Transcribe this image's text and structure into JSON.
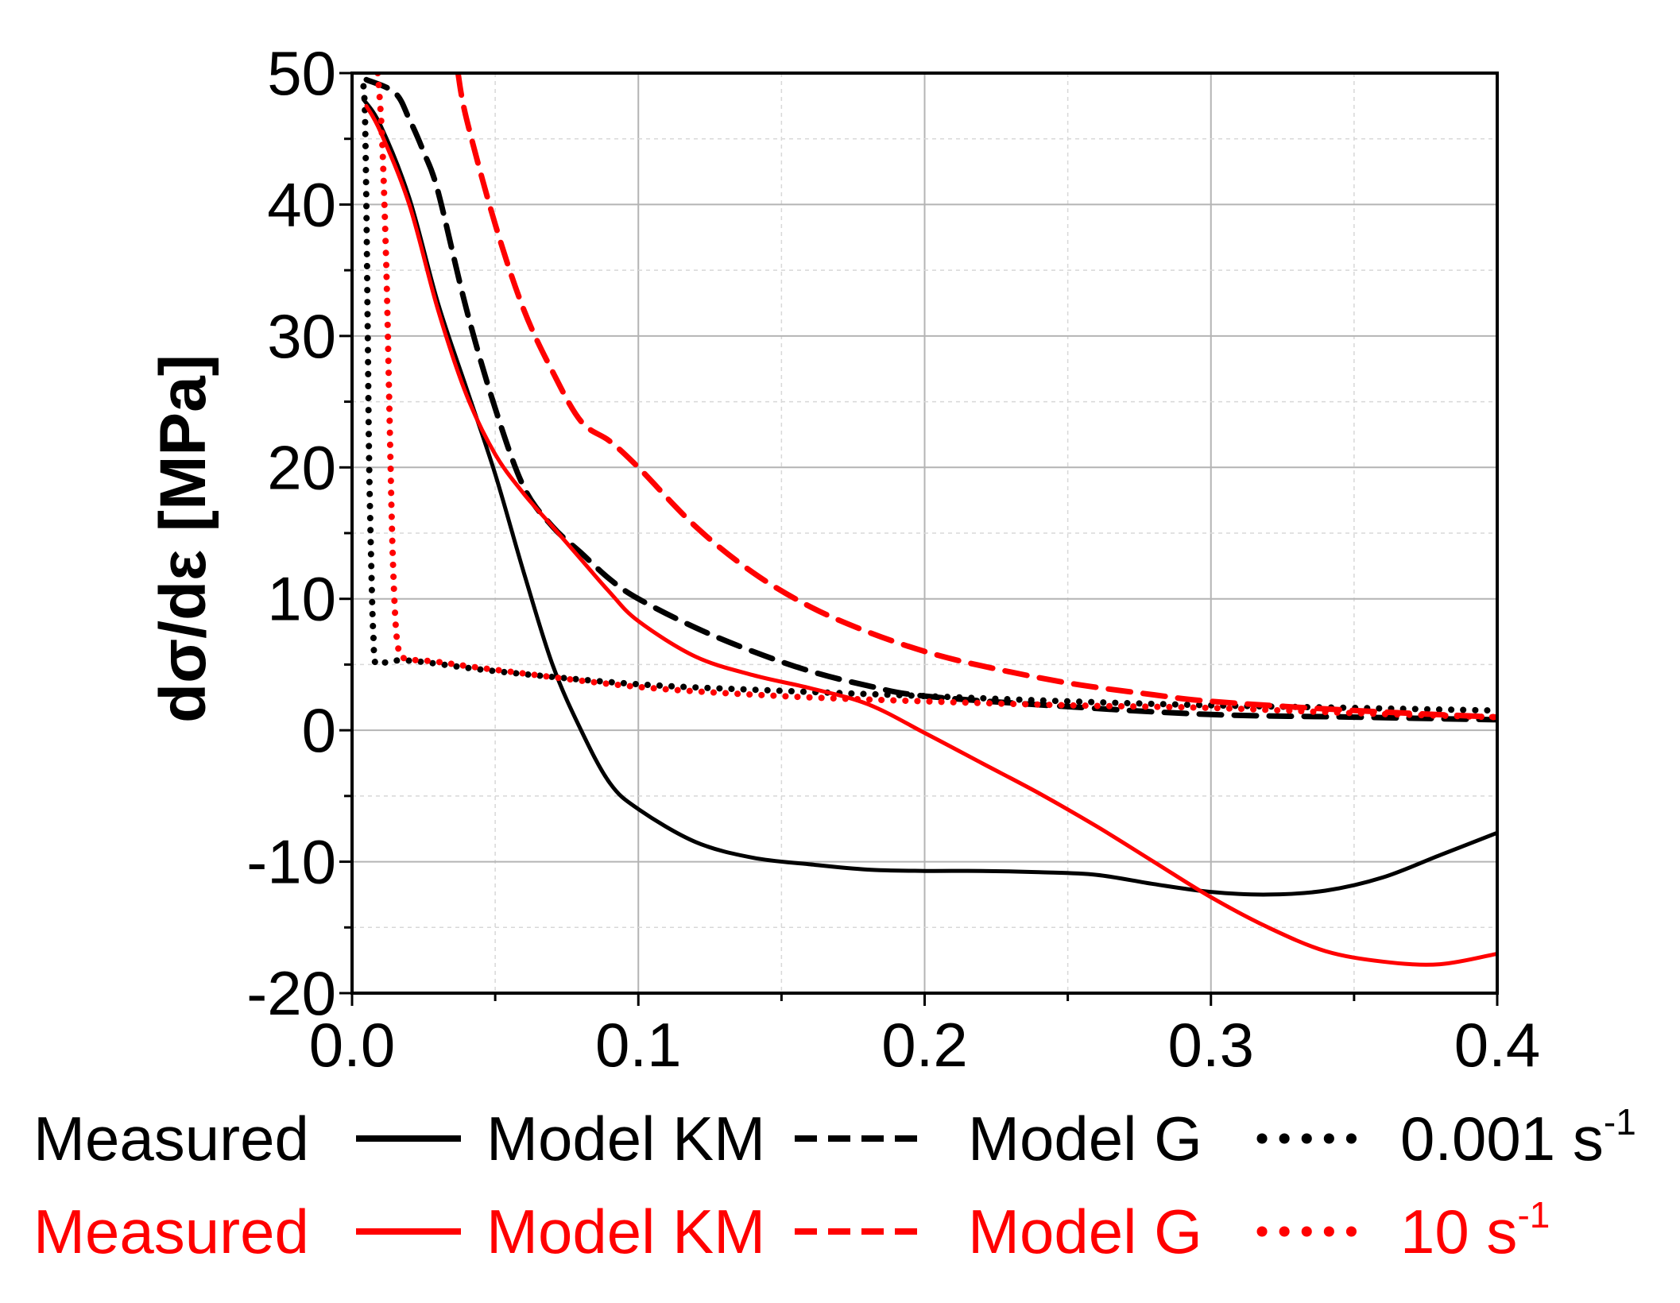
{
  "chart_data": {
    "type": "line",
    "title": "",
    "xlabel": "",
    "ylabel": "dσ/dε [MPa]",
    "xlim": [
      0.0,
      0.4
    ],
    "ylim": [
      -20,
      50
    ],
    "x_ticks": [
      "0.0",
      "0.1",
      "0.2",
      "0.3",
      "0.4"
    ],
    "y_ticks": [
      "-20",
      "-10",
      "0",
      "10",
      "20",
      "30",
      "40",
      "50"
    ],
    "grid": true,
    "legend": {
      "placement": "bottom",
      "rows": [
        {
          "color": "#000000",
          "measured": "Measured",
          "model_km": "Model KM",
          "model_g": "Model G",
          "rate_value": "0.001 s",
          "rate_exp": "-1"
        },
        {
          "color": "#ff0000",
          "measured": "Measured",
          "model_km": "Model KM",
          "model_g": "Model G",
          "rate_value": "10 s",
          "rate_exp": "-1"
        }
      ]
    },
    "series": [
      {
        "name": "Measured 0.001 s-1",
        "color": "#000000",
        "style": "solid",
        "x": [
          0.004,
          0.01,
          0.02,
          0.03,
          0.04,
          0.05,
          0.06,
          0.07,
          0.08,
          0.09,
          0.1,
          0.12,
          0.14,
          0.16,
          0.18,
          0.2,
          0.22,
          0.24,
          0.26,
          0.28,
          0.3,
          0.32,
          0.34,
          0.36,
          0.38,
          0.4
        ],
        "y": [
          48,
          46,
          40.5,
          32.5,
          26,
          19.5,
          12,
          5,
          0,
          -4,
          -6,
          -8.5,
          -9.7,
          -10.2,
          -10.6,
          -10.7,
          -10.7,
          -10.8,
          -11,
          -11.7,
          -12.3,
          -12.5,
          -12.2,
          -11.2,
          -9.5,
          -7.8
        ]
      },
      {
        "name": "Model KM 0.001 s-1",
        "color": "#000000",
        "style": "dashed",
        "x": [
          0.005,
          0.015,
          0.02,
          0.025,
          0.03,
          0.04,
          0.05,
          0.06,
          0.07,
          0.08,
          0.09,
          0.1,
          0.12,
          0.14,
          0.16,
          0.18,
          0.2,
          0.25,
          0.3,
          0.35,
          0.4
        ],
        "y": [
          49.5,
          48.5,
          46.5,
          44,
          41,
          32,
          24.5,
          18.5,
          15.5,
          13.5,
          11.5,
          10,
          7.8,
          6,
          4.5,
          3.4,
          2.6,
          1.8,
          1.2,
          1.0,
          0.8
        ]
      },
      {
        "name": "Model G 0.001 s-1",
        "color": "#000000",
        "style": "dotted",
        "x": [
          0.004,
          0.0045,
          0.005,
          0.0055,
          0.006,
          0.007,
          0.0075,
          0.008,
          0.01,
          0.02,
          0.05,
          0.1,
          0.15,
          0.2,
          0.25,
          0.3,
          0.35,
          0.4
        ],
        "y": [
          49,
          47,
          40,
          30,
          20,
          10,
          7,
          5.2,
          5.1,
          5.3,
          4.5,
          3.5,
          3.0,
          2.6,
          2.2,
          1.9,
          1.7,
          1.5
        ]
      },
      {
        "name": "Measured 10 s-1",
        "color": "#ff0000",
        "style": "solid",
        "x": [
          0.005,
          0.01,
          0.02,
          0.03,
          0.04,
          0.05,
          0.06,
          0.07,
          0.08,
          0.09,
          0.1,
          0.12,
          0.14,
          0.16,
          0.18,
          0.2,
          0.22,
          0.24,
          0.26,
          0.28,
          0.3,
          0.32,
          0.34,
          0.36,
          0.38,
          0.4
        ],
        "y": [
          47.5,
          45.5,
          40,
          32,
          25.5,
          21,
          18,
          15.5,
          13,
          10.5,
          8.3,
          5.6,
          4.2,
          3.2,
          2,
          -0.2,
          -2.5,
          -4.8,
          -7.3,
          -10,
          -12.7,
          -15,
          -16.8,
          -17.6,
          -17.8,
          -17
        ]
      },
      {
        "name": "Model KM 10 s-1",
        "color": "#ff0000",
        "style": "dashed",
        "x": [
          0.037,
          0.04,
          0.05,
          0.06,
          0.07,
          0.08,
          0.09,
          0.1,
          0.12,
          0.14,
          0.16,
          0.18,
          0.2,
          0.22,
          0.25,
          0.28,
          0.3,
          0.35,
          0.4
        ],
        "y": [
          50,
          46.5,
          38.5,
          32,
          27.3,
          23.5,
          22,
          20,
          15.5,
          12,
          9.4,
          7.5,
          6,
          4.9,
          3.6,
          2.7,
          2.2,
          1.5,
          1.0
        ]
      },
      {
        "name": "Model G 10 s-1",
        "color": "#ff0000",
        "style": "dotted",
        "x": [
          0.009,
          0.0105,
          0.012,
          0.013,
          0.014,
          0.015,
          0.016,
          0.018,
          0.03,
          0.05,
          0.1,
          0.15,
          0.2,
          0.25,
          0.3,
          0.35,
          0.4
        ],
        "y": [
          50,
          45,
          35,
          25,
          15,
          9,
          6.5,
          5.5,
          5.2,
          4.6,
          3.3,
          2.6,
          2.2,
          1.9,
          1.7,
          1.3,
          1.0
        ]
      }
    ]
  }
}
